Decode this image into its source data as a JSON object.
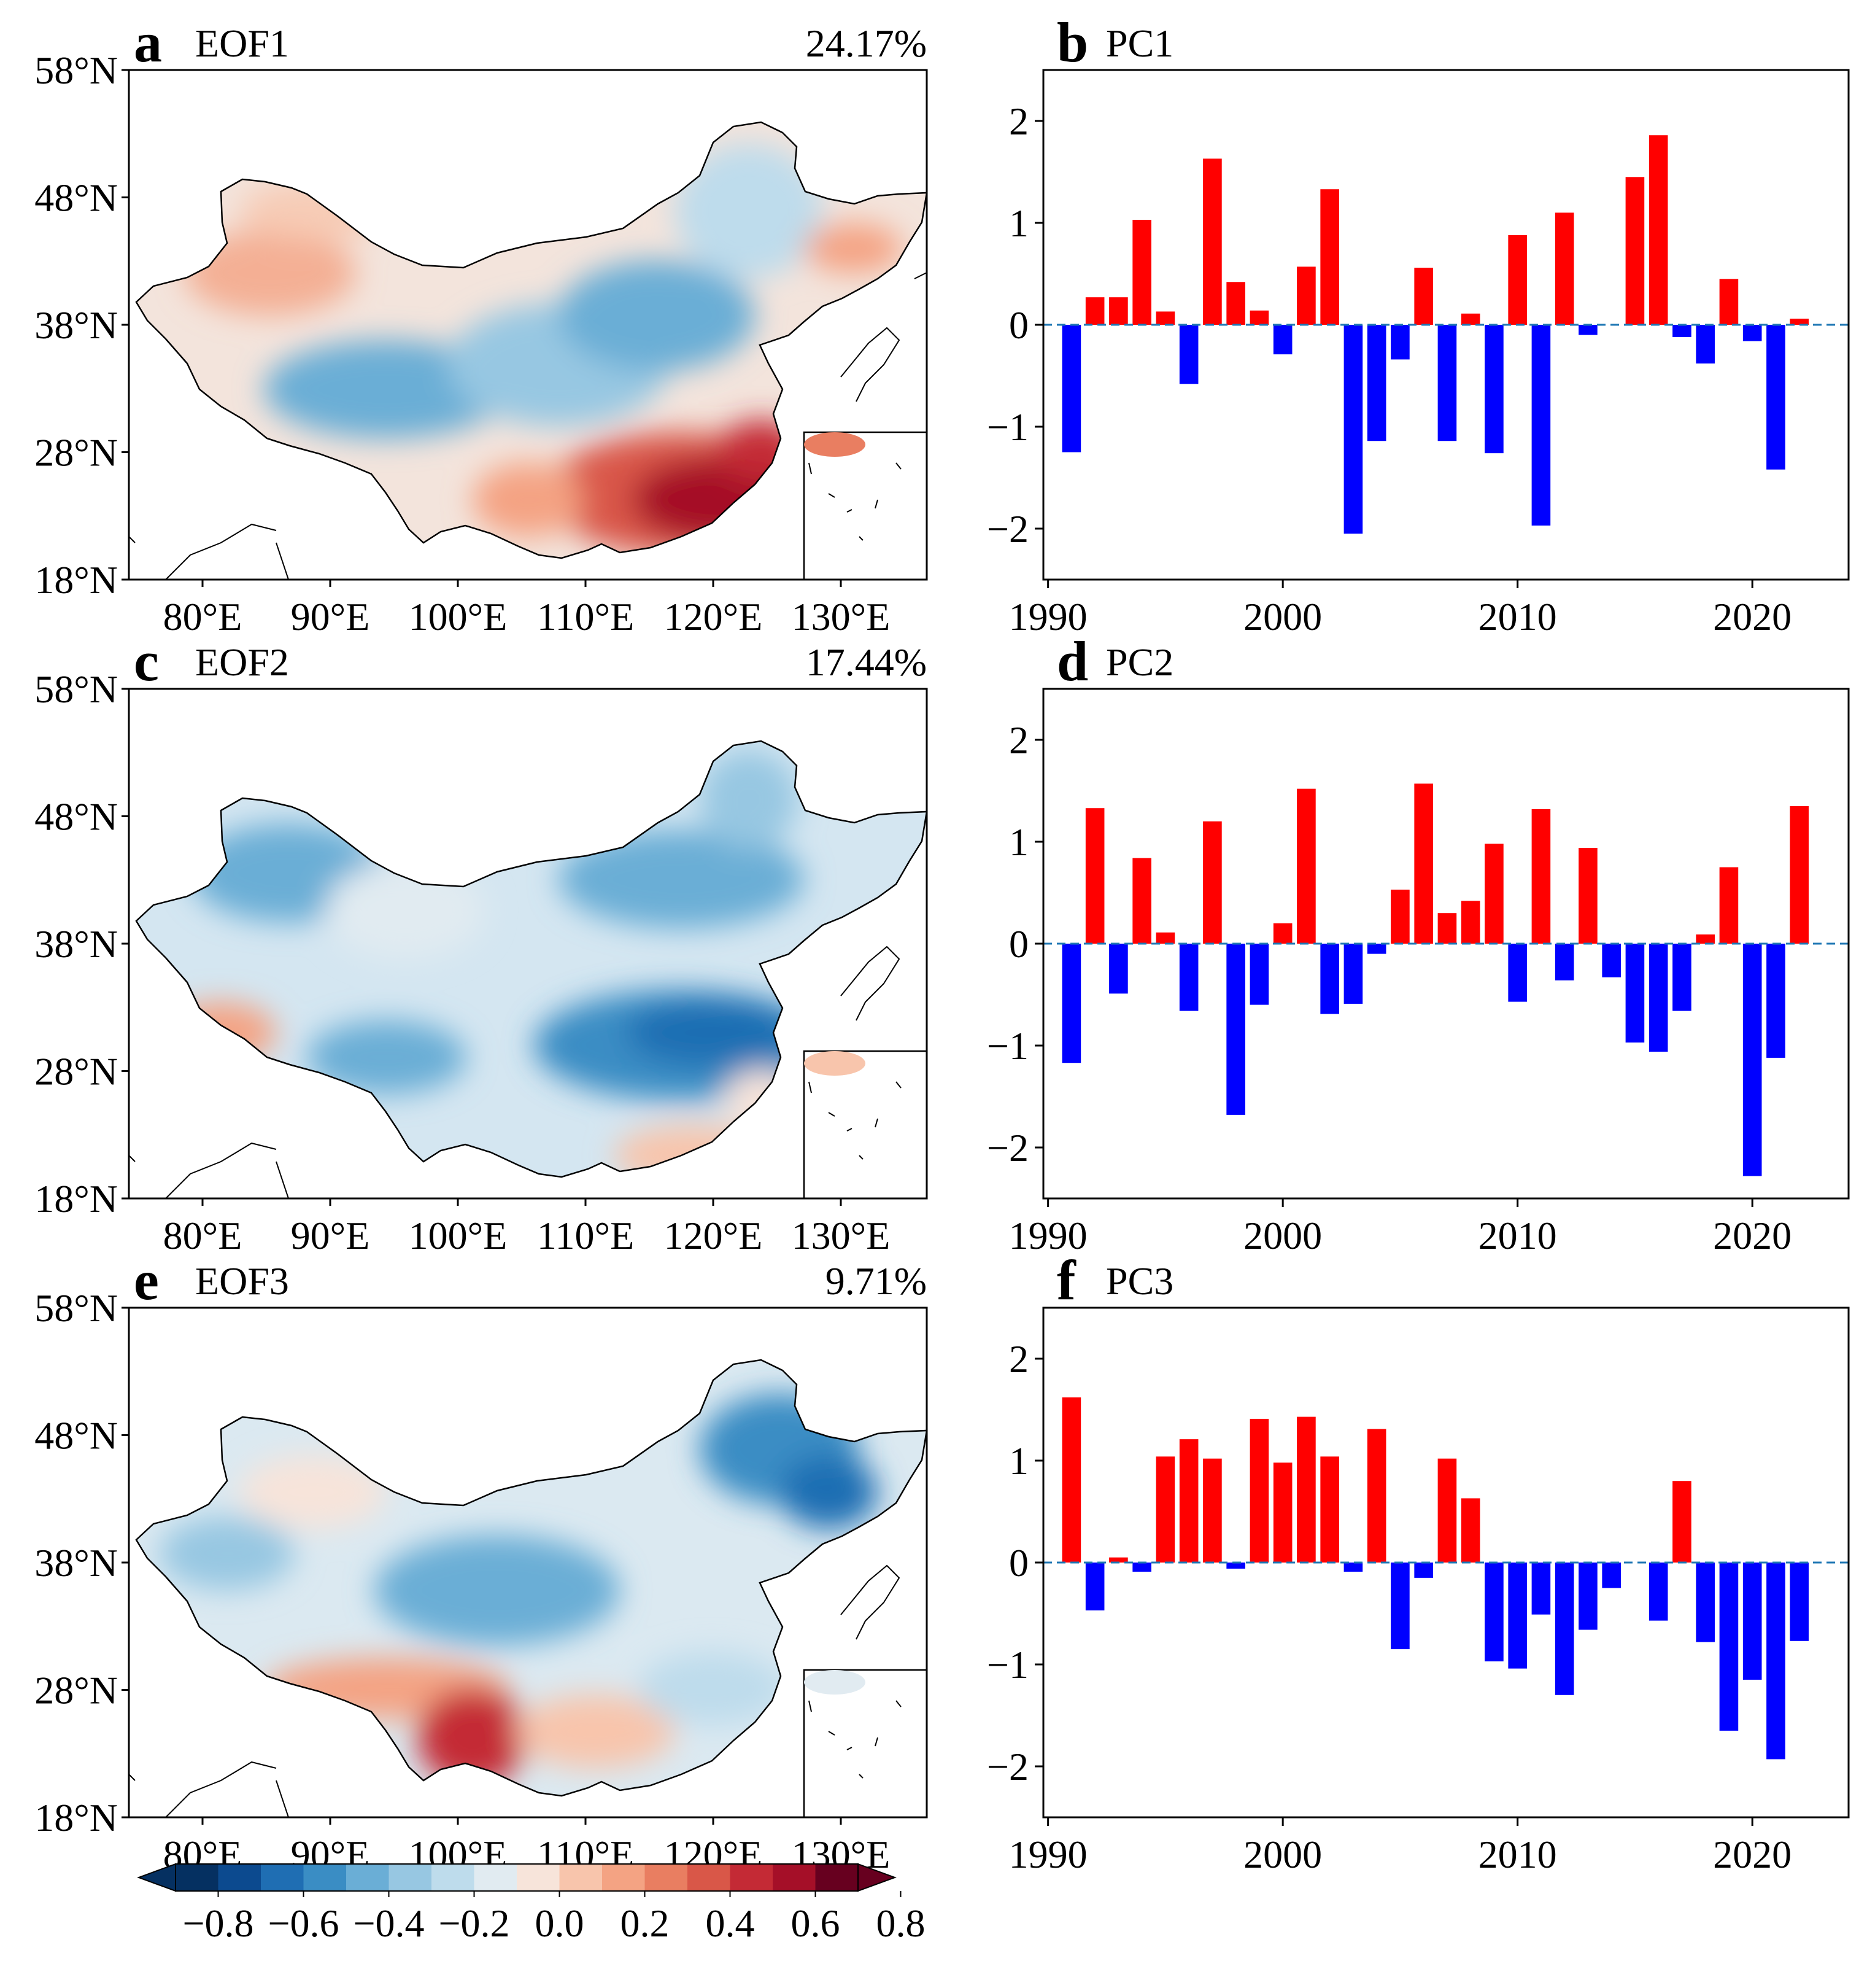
{
  "map_panels": [
    {
      "letter": "a",
      "title": "EOF1",
      "variance": "24.17%",
      "pattern": "eof1"
    },
    {
      "letter": "c",
      "title": "EOF2",
      "variance": "17.44%",
      "pattern": "eof2"
    },
    {
      "letter": "e",
      "title": "EOF3",
      "variance": "9.71%",
      "pattern": "eof3"
    }
  ],
  "map_axes": {
    "lat_labels": [
      "58°N",
      "48°N",
      "38°N",
      "28°N",
      "18°N"
    ],
    "lon_labels": [
      "80°E",
      "90°E",
      "100°E",
      "110°E",
      "120°E",
      "130°E"
    ]
  },
  "colorbar": {
    "tick_labels": [
      "−0.8",
      "−0.6",
      "−0.4",
      "−0.2",
      "0.0",
      "0.2",
      "0.4",
      "0.6",
      "0.8"
    ],
    "colors": [
      "#053061",
      "#0c4a8f",
      "#1f6eb3",
      "#3a8dc4",
      "#6aaed6",
      "#97c7e2",
      "#bedcec",
      "#e1ebf1",
      "#f7e4da",
      "#f8c5ac",
      "#f4a383",
      "#e97e61",
      "#d95748",
      "#c42a35",
      "#a50f28",
      "#67001f"
    ]
  },
  "colors": {
    "positive": "#ff0000",
    "negative": "#0000ff",
    "zero_line": "#1f77b4"
  },
  "chart_data": [
    {
      "type": "bar",
      "letter": "b",
      "title": "PC1",
      "x": [
        1991,
        1992,
        1993,
        1994,
        1995,
        1996,
        1997,
        1998,
        1999,
        2000,
        2001,
        2002,
        2003,
        2004,
        2005,
        2006,
        2007,
        2008,
        2009,
        2010,
        2011,
        2012,
        2013,
        2014,
        2015,
        2016,
        2017,
        2018,
        2019,
        2020,
        2021,
        2022
      ],
      "values": [
        -1.25,
        0.27,
        0.27,
        1.03,
        0.13,
        -0.58,
        1.63,
        0.42,
        0.14,
        -0.29,
        0.57,
        1.33,
        -2.05,
        -1.14,
        -0.34,
        0.56,
        -1.14,
        0.11,
        -1.26,
        0.88,
        -1.97,
        1.1,
        -0.1,
        0.0,
        1.45,
        1.86,
        -0.12,
        -0.38,
        0.45,
        -0.16,
        -1.42,
        0.06
      ],
      "xticks": [
        "1990",
        "2000",
        "2010",
        "2020"
      ],
      "yticks": [
        "−2",
        "−1",
        "0",
        "1",
        "2"
      ],
      "xlim": [
        1989.8,
        2024.1
      ],
      "ylim": [
        -2.5,
        2.5
      ]
    },
    {
      "type": "bar",
      "letter": "d",
      "title": "PC2",
      "x": [
        1991,
        1992,
        1993,
        1994,
        1995,
        1996,
        1997,
        1998,
        1999,
        2000,
        2001,
        2002,
        2003,
        2004,
        2005,
        2006,
        2007,
        2008,
        2009,
        2010,
        2011,
        2012,
        2013,
        2014,
        2015,
        2016,
        2017,
        2018,
        2019,
        2020,
        2021,
        2022
      ],
      "values": [
        -1.17,
        1.33,
        -0.49,
        0.84,
        0.11,
        -0.66,
        1.2,
        -1.68,
        -0.6,
        0.2,
        1.52,
        -0.69,
        -0.59,
        -0.1,
        0.53,
        1.57,
        0.3,
        0.42,
        0.98,
        -0.57,
        1.32,
        -0.36,
        0.94,
        -0.33,
        -0.97,
        -1.06,
        -0.66,
        0.09,
        0.75,
        -2.28,
        -1.12,
        1.35
      ],
      "xticks": [
        "1990",
        "2000",
        "2010",
        "2020"
      ],
      "yticks": [
        "−2",
        "−1",
        "0",
        "1",
        "2"
      ],
      "xlim": [
        1989.8,
        2024.1
      ],
      "ylim": [
        -2.5,
        2.5
      ]
    },
    {
      "type": "bar",
      "letter": "f",
      "title": "PC3",
      "x": [
        1991,
        1992,
        1993,
        1994,
        1995,
        1996,
        1997,
        1998,
        1999,
        2000,
        2001,
        2002,
        2003,
        2004,
        2005,
        2006,
        2007,
        2008,
        2009,
        2010,
        2011,
        2012,
        2013,
        2014,
        2015,
        2016,
        2017,
        2018,
        2019,
        2020,
        2021,
        2022
      ],
      "values": [
        1.62,
        -0.47,
        0.05,
        -0.09,
        1.04,
        1.21,
        1.02,
        -0.06,
        1.41,
        0.98,
        1.43,
        1.04,
        -0.09,
        1.31,
        -0.85,
        -0.15,
        1.02,
        0.63,
        -0.97,
        -1.04,
        -0.51,
        -1.3,
        -0.66,
        -0.25,
        0.0,
        -0.57,
        0.8,
        -0.78,
        -1.65,
        -1.15,
        -1.93,
        -0.77
      ],
      "xticks": [
        "1990",
        "2000",
        "2010",
        "2020"
      ],
      "yticks": [
        "−2",
        "−1",
        "0",
        "1",
        "2"
      ],
      "xlim": [
        1989.8,
        2024.1
      ],
      "ylim": [
        -2.5,
        2.5
      ]
    }
  ]
}
